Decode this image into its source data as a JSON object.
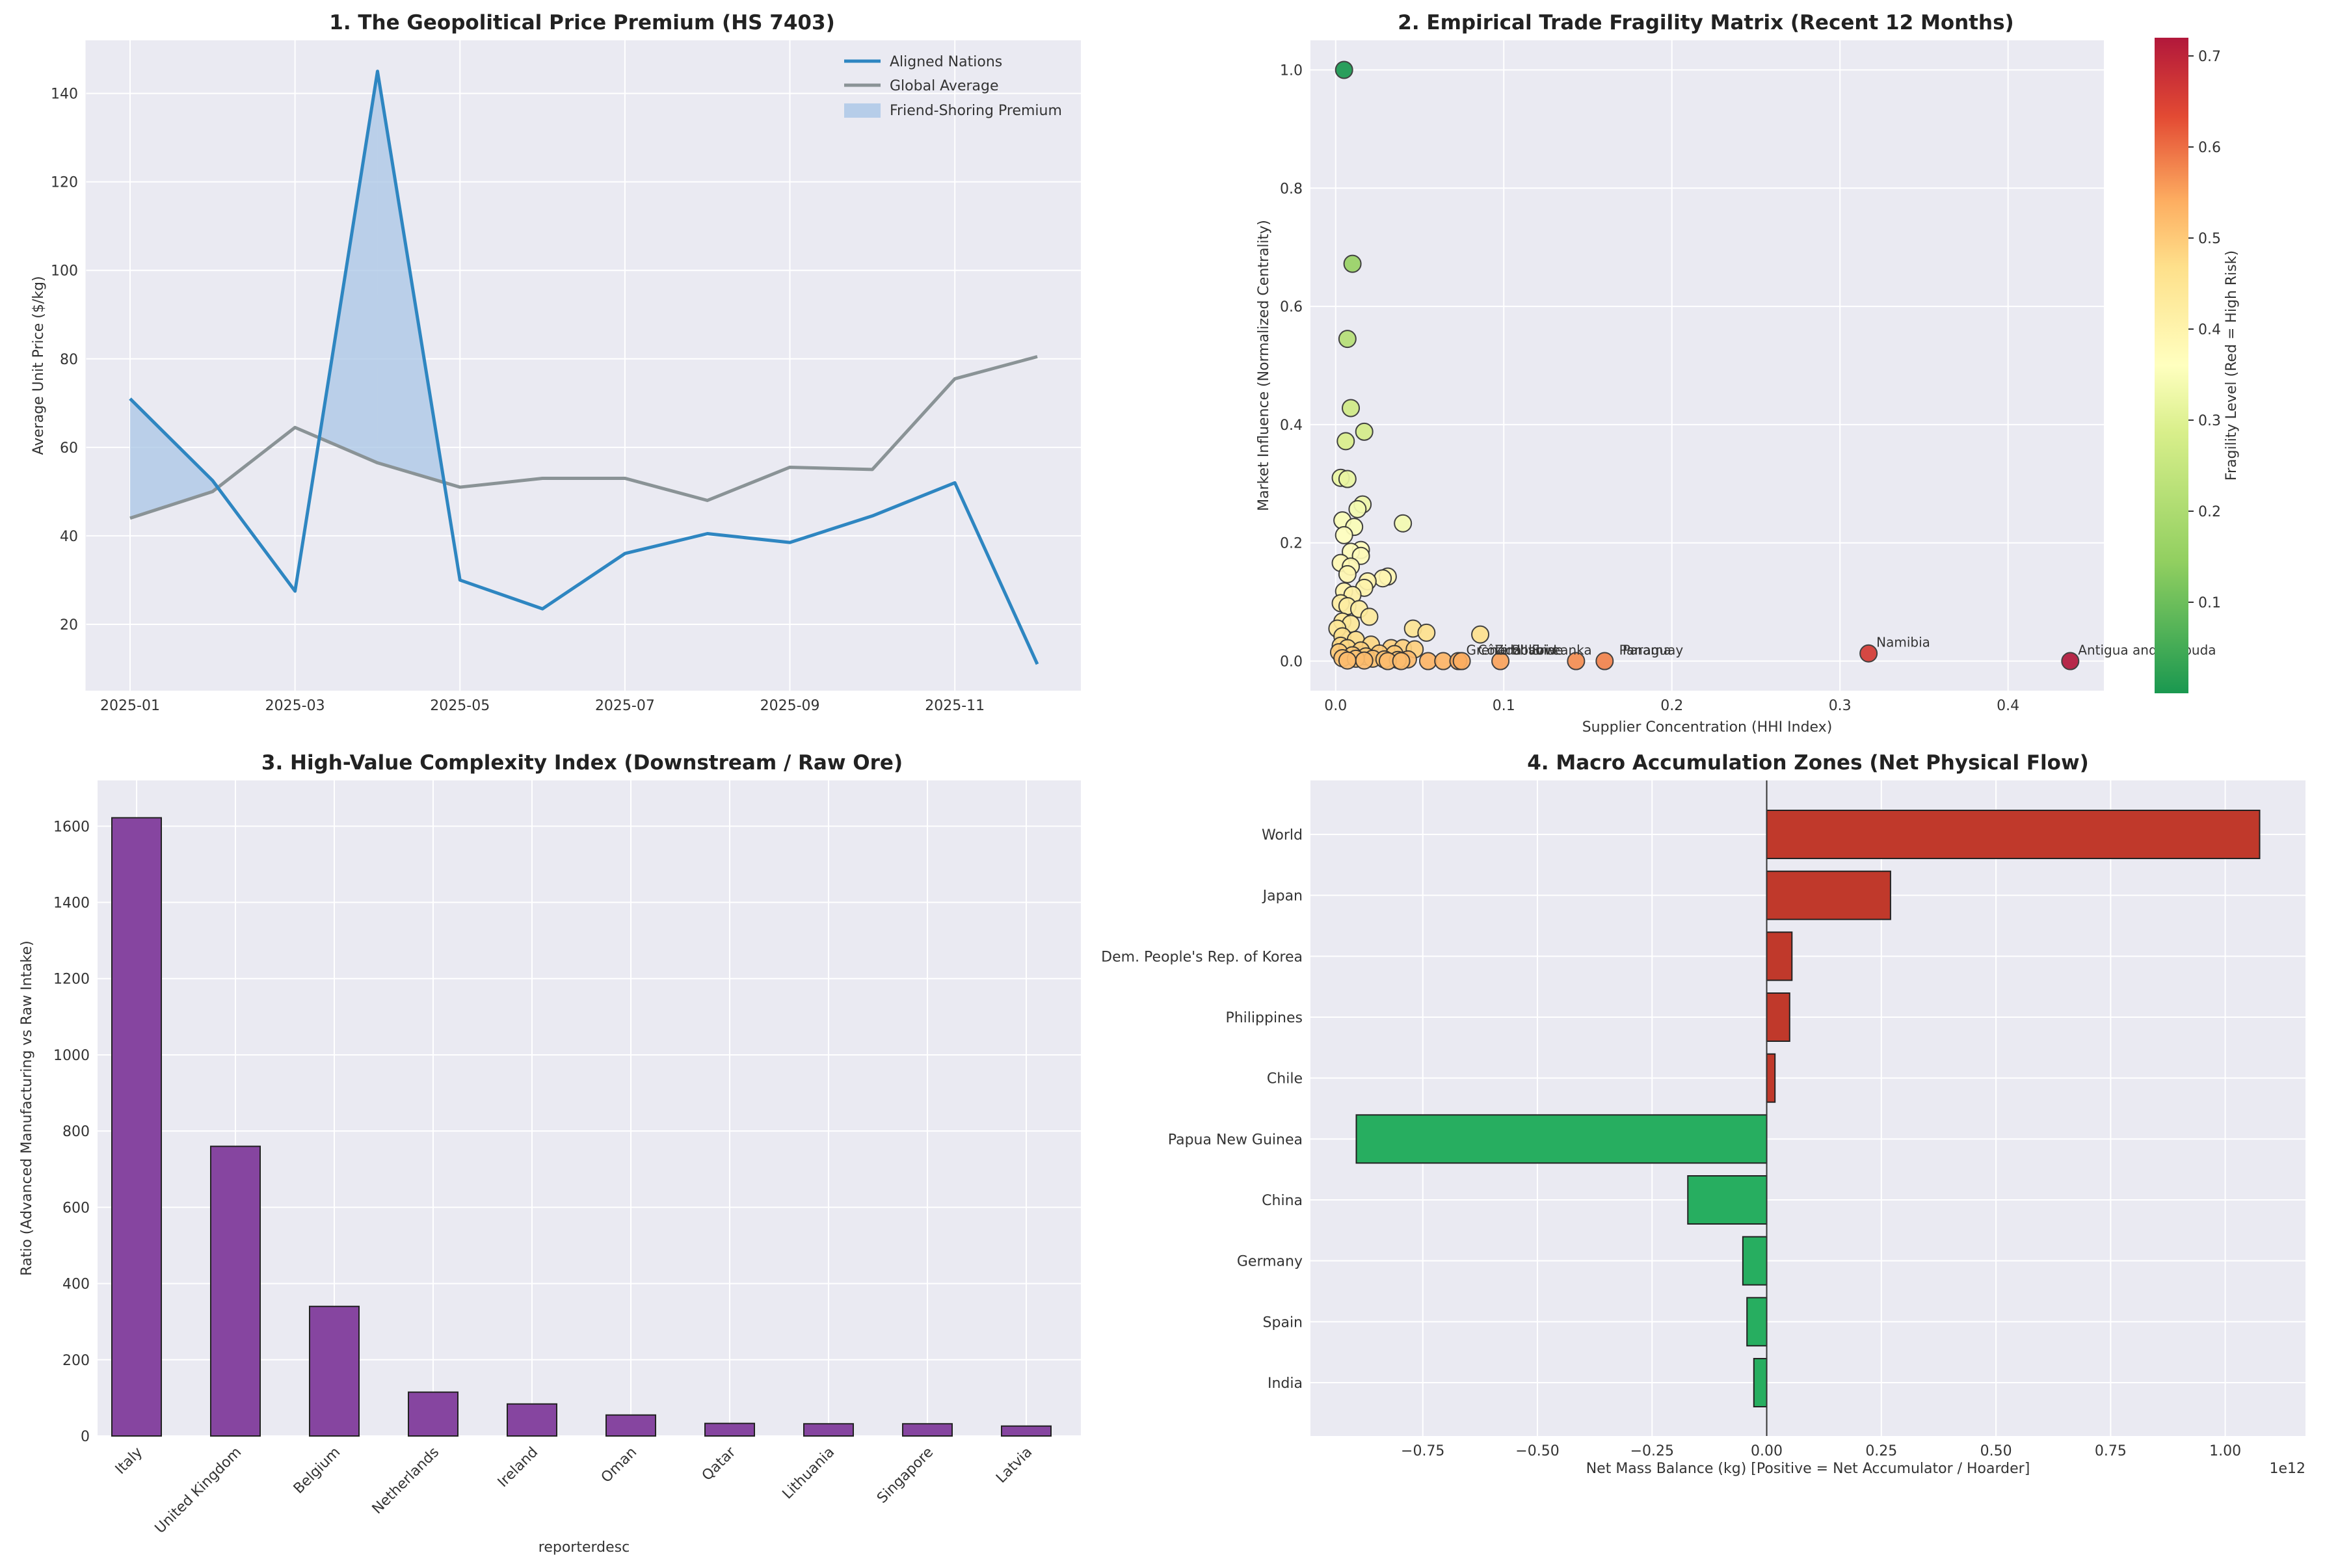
{
  "chart_data": [
    {
      "type": "line",
      "title": "1. The Geopolitical Price Premium (HS 7403)",
      "xlabel": "",
      "ylabel": "Average Unit Price ($/kg)",
      "x": [
        "2025-01",
        "2025-02",
        "2025-03",
        "2025-04",
        "2025-05",
        "2025-06",
        "2025-07",
        "2025-08",
        "2025-09",
        "2025-10",
        "2025-11",
        "2025-12"
      ],
      "x_ticks": [
        "2025-01",
        "2025-03",
        "2025-05",
        "2025-07",
        "2025-09",
        "2025-11"
      ],
      "ylim": [
        5,
        152
      ],
      "y_ticks": [
        20,
        40,
        60,
        80,
        100,
        120,
        140
      ],
      "series": [
        {
          "name": "Aligned Nations",
          "color": "#2e86c1",
          "values": [
            71,
            52.5,
            27.5,
            145,
            30,
            23.5,
            36,
            40.5,
            38.5,
            44.5,
            52,
            11
          ]
        },
        {
          "name": "Global Average",
          "color": "#8a9396",
          "values": [
            44,
            50,
            64.5,
            56.5,
            51,
            53,
            53,
            48,
            55.5,
            55,
            75.5,
            80.5
          ]
        }
      ],
      "fill": {
        "name": "Friend-Shoring Premium",
        "color": "#a9c6e6"
      },
      "legend": "top-right",
      "grid": true
    },
    {
      "type": "scatter",
      "title": "2. Empirical Trade Fragility Matrix (Recent 12 Months)",
      "xlabel": "Supplier Concentration (HHI Index)",
      "ylabel": "Market Influence (Normalized Centrality)",
      "xlim": [
        -0.015,
        0.457
      ],
      "ylim": [
        -0.05,
        1.05
      ],
      "x_ticks": [
        0.0,
        0.1,
        0.2,
        0.3,
        0.4
      ],
      "y_ticks": [
        0.0,
        0.2,
        0.4,
        0.6,
        0.8,
        1.0
      ],
      "colorbar": {
        "label": "Fragility Level (Red = High Risk)",
        "min": 0.0,
        "max": 0.72,
        "ticks": [
          0.1,
          0.2,
          0.3,
          0.4,
          0.5,
          0.6,
          0.7
        ],
        "colormap": "RdYlGn_r"
      },
      "points": [
        {
          "x": 0.005,
          "y": 1.0,
          "f": 0.0
        },
        {
          "x": 0.01,
          "y": 0.672,
          "f": 0.16
        },
        {
          "x": 0.007,
          "y": 0.545,
          "f": 0.22
        },
        {
          "x": 0.009,
          "y": 0.428,
          "f": 0.27
        },
        {
          "x": 0.017,
          "y": 0.388,
          "f": 0.28
        },
        {
          "x": 0.006,
          "y": 0.372,
          "f": 0.29
        },
        {
          "x": 0.003,
          "y": 0.31,
          "f": 0.32
        },
        {
          "x": 0.007,
          "y": 0.308,
          "f": 0.32
        },
        {
          "x": 0.016,
          "y": 0.265,
          "f": 0.33
        },
        {
          "x": 0.013,
          "y": 0.257,
          "f": 0.34
        },
        {
          "x": 0.04,
          "y": 0.233,
          "f": 0.34
        },
        {
          "x": 0.004,
          "y": 0.238,
          "f": 0.35
        },
        {
          "x": 0.011,
          "y": 0.227,
          "f": 0.35
        },
        {
          "x": 0.005,
          "y": 0.213,
          "f": 0.36
        },
        {
          "x": 0.009,
          "y": 0.185,
          "f": 0.37
        },
        {
          "x": 0.015,
          "y": 0.188,
          "f": 0.37
        },
        {
          "x": 0.015,
          "y": 0.178,
          "f": 0.37
        },
        {
          "x": 0.003,
          "y": 0.166,
          "f": 0.38
        },
        {
          "x": 0.009,
          "y": 0.16,
          "f": 0.38
        },
        {
          "x": 0.007,
          "y": 0.147,
          "f": 0.39
        },
        {
          "x": 0.031,
          "y": 0.143,
          "f": 0.39
        },
        {
          "x": 0.028,
          "y": 0.14,
          "f": 0.39
        },
        {
          "x": 0.019,
          "y": 0.135,
          "f": 0.4
        },
        {
          "x": 0.017,
          "y": 0.124,
          "f": 0.4
        },
        {
          "x": 0.005,
          "y": 0.118,
          "f": 0.4
        },
        {
          "x": 0.01,
          "y": 0.112,
          "f": 0.41
        },
        {
          "x": 0.003,
          "y": 0.098,
          "f": 0.42
        },
        {
          "x": 0.007,
          "y": 0.093,
          "f": 0.42
        },
        {
          "x": 0.014,
          "y": 0.088,
          "f": 0.42
        },
        {
          "x": 0.02,
          "y": 0.075,
          "f": 0.43
        },
        {
          "x": 0.004,
          "y": 0.067,
          "f": 0.44
        },
        {
          "x": 0.009,
          "y": 0.063,
          "f": 0.44
        },
        {
          "x": 0.001,
          "y": 0.055,
          "f": 0.44
        },
        {
          "x": 0.046,
          "y": 0.055,
          "f": 0.45
        },
        {
          "x": 0.054,
          "y": 0.048,
          "f": 0.46
        },
        {
          "x": 0.086,
          "y": 0.045,
          "f": 0.46
        },
        {
          "x": 0.004,
          "y": 0.042,
          "f": 0.46
        },
        {
          "x": 0.012,
          "y": 0.036,
          "f": 0.47
        },
        {
          "x": 0.021,
          "y": 0.028,
          "f": 0.48
        },
        {
          "x": 0.003,
          "y": 0.026,
          "f": 0.48
        },
        {
          "x": 0.007,
          "y": 0.022,
          "f": 0.48
        },
        {
          "x": 0.033,
          "y": 0.022,
          "f": 0.49
        },
        {
          "x": 0.04,
          "y": 0.022,
          "f": 0.49
        },
        {
          "x": 0.047,
          "y": 0.02,
          "f": 0.49
        },
        {
          "x": 0.015,
          "y": 0.018,
          "f": 0.49
        },
        {
          "x": 0.002,
          "y": 0.015,
          "f": 0.5
        },
        {
          "x": 0.026,
          "y": 0.013,
          "f": 0.5
        },
        {
          "x": 0.035,
          "y": 0.012,
          "f": 0.5
        },
        {
          "x": 0.01,
          "y": 0.01,
          "f": 0.5
        },
        {
          "x": 0.018,
          "y": 0.008,
          "f": 0.5
        },
        {
          "x": 0.004,
          "y": 0.005,
          "f": 0.51
        },
        {
          "x": 0.012,
          "y": 0.004,
          "f": 0.51
        },
        {
          "x": 0.022,
          "y": 0.004,
          "f": 0.51
        },
        {
          "x": 0.029,
          "y": 0.003,
          "f": 0.51
        },
        {
          "x": 0.037,
          "y": 0.002,
          "f": 0.51
        },
        {
          "x": 0.043,
          "y": 0.003,
          "f": 0.52
        },
        {
          "x": 0.007,
          "y": 0.001,
          "f": 0.52
        },
        {
          "x": 0.017,
          "y": 0.001,
          "f": 0.52
        },
        {
          "x": 0.031,
          "y": 0.0,
          "f": 0.52
        },
        {
          "x": 0.039,
          "y": 0.0,
          "f": 0.52
        },
        {
          "x": 0.055,
          "y": 0.0,
          "f": 0.53
        },
        {
          "x": 0.064,
          "y": 0.0,
          "f": 0.53
        },
        {
          "x": 0.073,
          "y": 0.0,
          "f": 0.54
        },
        {
          "x": 0.075,
          "y": 0.0,
          "f": 0.54
        },
        {
          "x": 0.098,
          "y": 0.0,
          "f": 0.55
        },
        {
          "x": 0.143,
          "y": 0.0,
          "f": 0.57
        },
        {
          "x": 0.16,
          "y": 0.0,
          "f": 0.58
        },
        {
          "x": 0.317,
          "y": 0.013,
          "f": 0.66
        },
        {
          "x": 0.437,
          "y": 0.0,
          "f": 0.72
        }
      ],
      "annotations": [
        {
          "text": "Namibia",
          "x": 0.317,
          "y": 0.013
        },
        {
          "text": "Antigua and Barbuda",
          "x": 0.437,
          "y": 0.0
        },
        {
          "text": "Grenada",
          "x": 0.073,
          "y": 0.0
        },
        {
          "text": "Côte d'Ivoire",
          "x": 0.08,
          "y": 0.0
        },
        {
          "text": "Zimbabwe",
          "x": 0.09,
          "y": 0.0
        },
        {
          "text": "Bolivia",
          "x": 0.1,
          "y": 0.0
        },
        {
          "text": "Sri Lanka",
          "x": 0.112,
          "y": 0.0
        },
        {
          "text": "Panama",
          "x": 0.164,
          "y": 0.0
        },
        {
          "text": "Paraguay",
          "x": 0.166,
          "y": 0.0
        }
      ],
      "grid": true
    },
    {
      "type": "bar",
      "title": "3. High-Value Complexity Index (Downstream / Raw Ore)",
      "xlabel": "reporterdesc",
      "ylabel": "Ratio (Advanced Manufacturing vs Raw Intake)",
      "categories": [
        "Italy",
        "United Kingdom",
        "Belgium",
        "Netherlands",
        "Ireland",
        "Oman",
        "Qatar",
        "Lithuania",
        "Singapore",
        "Latvia"
      ],
      "values": [
        1622,
        760,
        340,
        115,
        84,
        55,
        33,
        32,
        32,
        26
      ],
      "ylim": [
        0,
        1720
      ],
      "y_ticks": [
        0,
        200,
        400,
        600,
        800,
        1000,
        1200,
        1400,
        1600
      ],
      "color": "#8645a0",
      "grid": true
    },
    {
      "type": "bar",
      "orientation": "horizontal",
      "title": "4. Macro Accumulation Zones (Net Physical Flow)",
      "xlabel": "Net Mass Balance (kg) [Positive = Net Accumulator / Hoarder]",
      "ylabel": "",
      "x_offset_text": "1e12",
      "categories": [
        "World",
        "Japan",
        "Dem. People's Rep. of Korea",
        "Philippines",
        "Chile",
        "Papua New Guinea",
        "China",
        "Germany",
        "Spain",
        "India"
      ],
      "values": [
        1.075,
        0.27,
        0.055,
        0.05,
        0.018,
        -0.895,
        -0.172,
        -0.052,
        -0.043,
        -0.028
      ],
      "xlim": [
        -0.995,
        1.175
      ],
      "x_ticks": [
        "−0.75",
        "−0.50",
        "−0.25",
        "0.00",
        "0.25",
        "0.50",
        "0.75",
        "1.00"
      ],
      "x_tick_values": [
        -0.75,
        -0.5,
        -0.25,
        0.0,
        0.25,
        0.5,
        0.75,
        1.0
      ],
      "colors": {
        "positive": "#c0392b",
        "negative": "#27ae60"
      },
      "grid": true
    }
  ]
}
